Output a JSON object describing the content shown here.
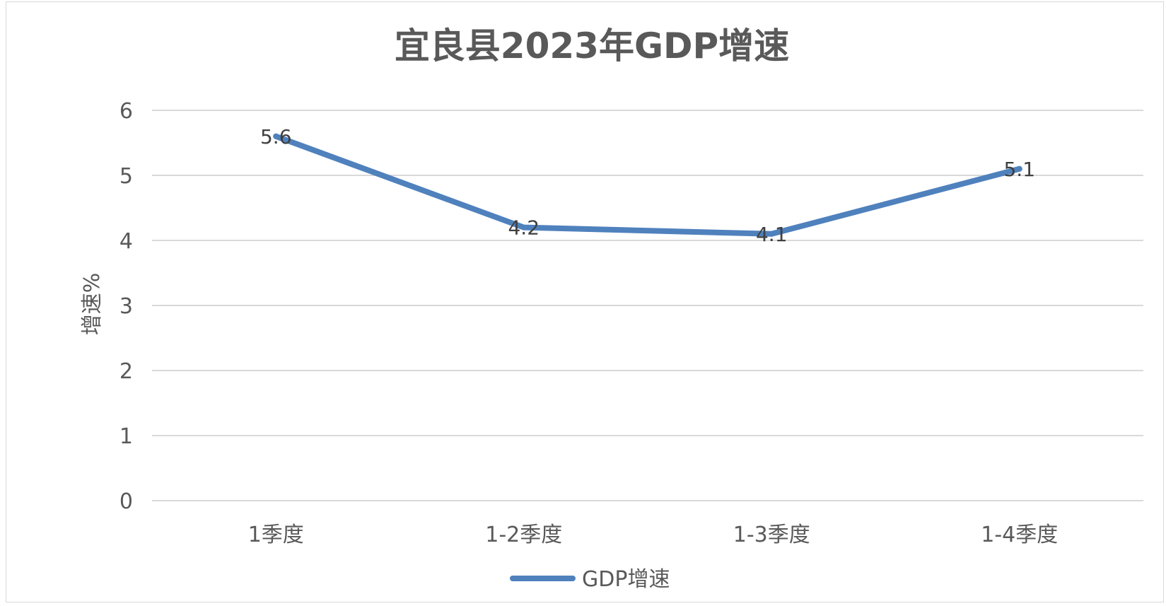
{
  "chart_data": {
    "type": "line",
    "title": "宜良县2023年GDP增速",
    "ylabel": "增速%",
    "xlabel": "",
    "categories": [
      "1季度",
      "1-2季度",
      "1-3季度",
      "1-4季度"
    ],
    "series": [
      {
        "name": "GDP增速",
        "values": [
          5.6,
          4.2,
          4.1,
          5.1
        ],
        "data_labels": [
          "5.6",
          "4.2",
          "4.1",
          "5.1"
        ],
        "color": "#4f81bd"
      }
    ],
    "ylim": [
      0,
      6
    ],
    "yticks": [
      "0",
      "1",
      "2",
      "3",
      "4",
      "5",
      "6"
    ],
    "grid": true,
    "legend_position": "bottom",
    "gridline_color": "#d9d9d9"
  }
}
